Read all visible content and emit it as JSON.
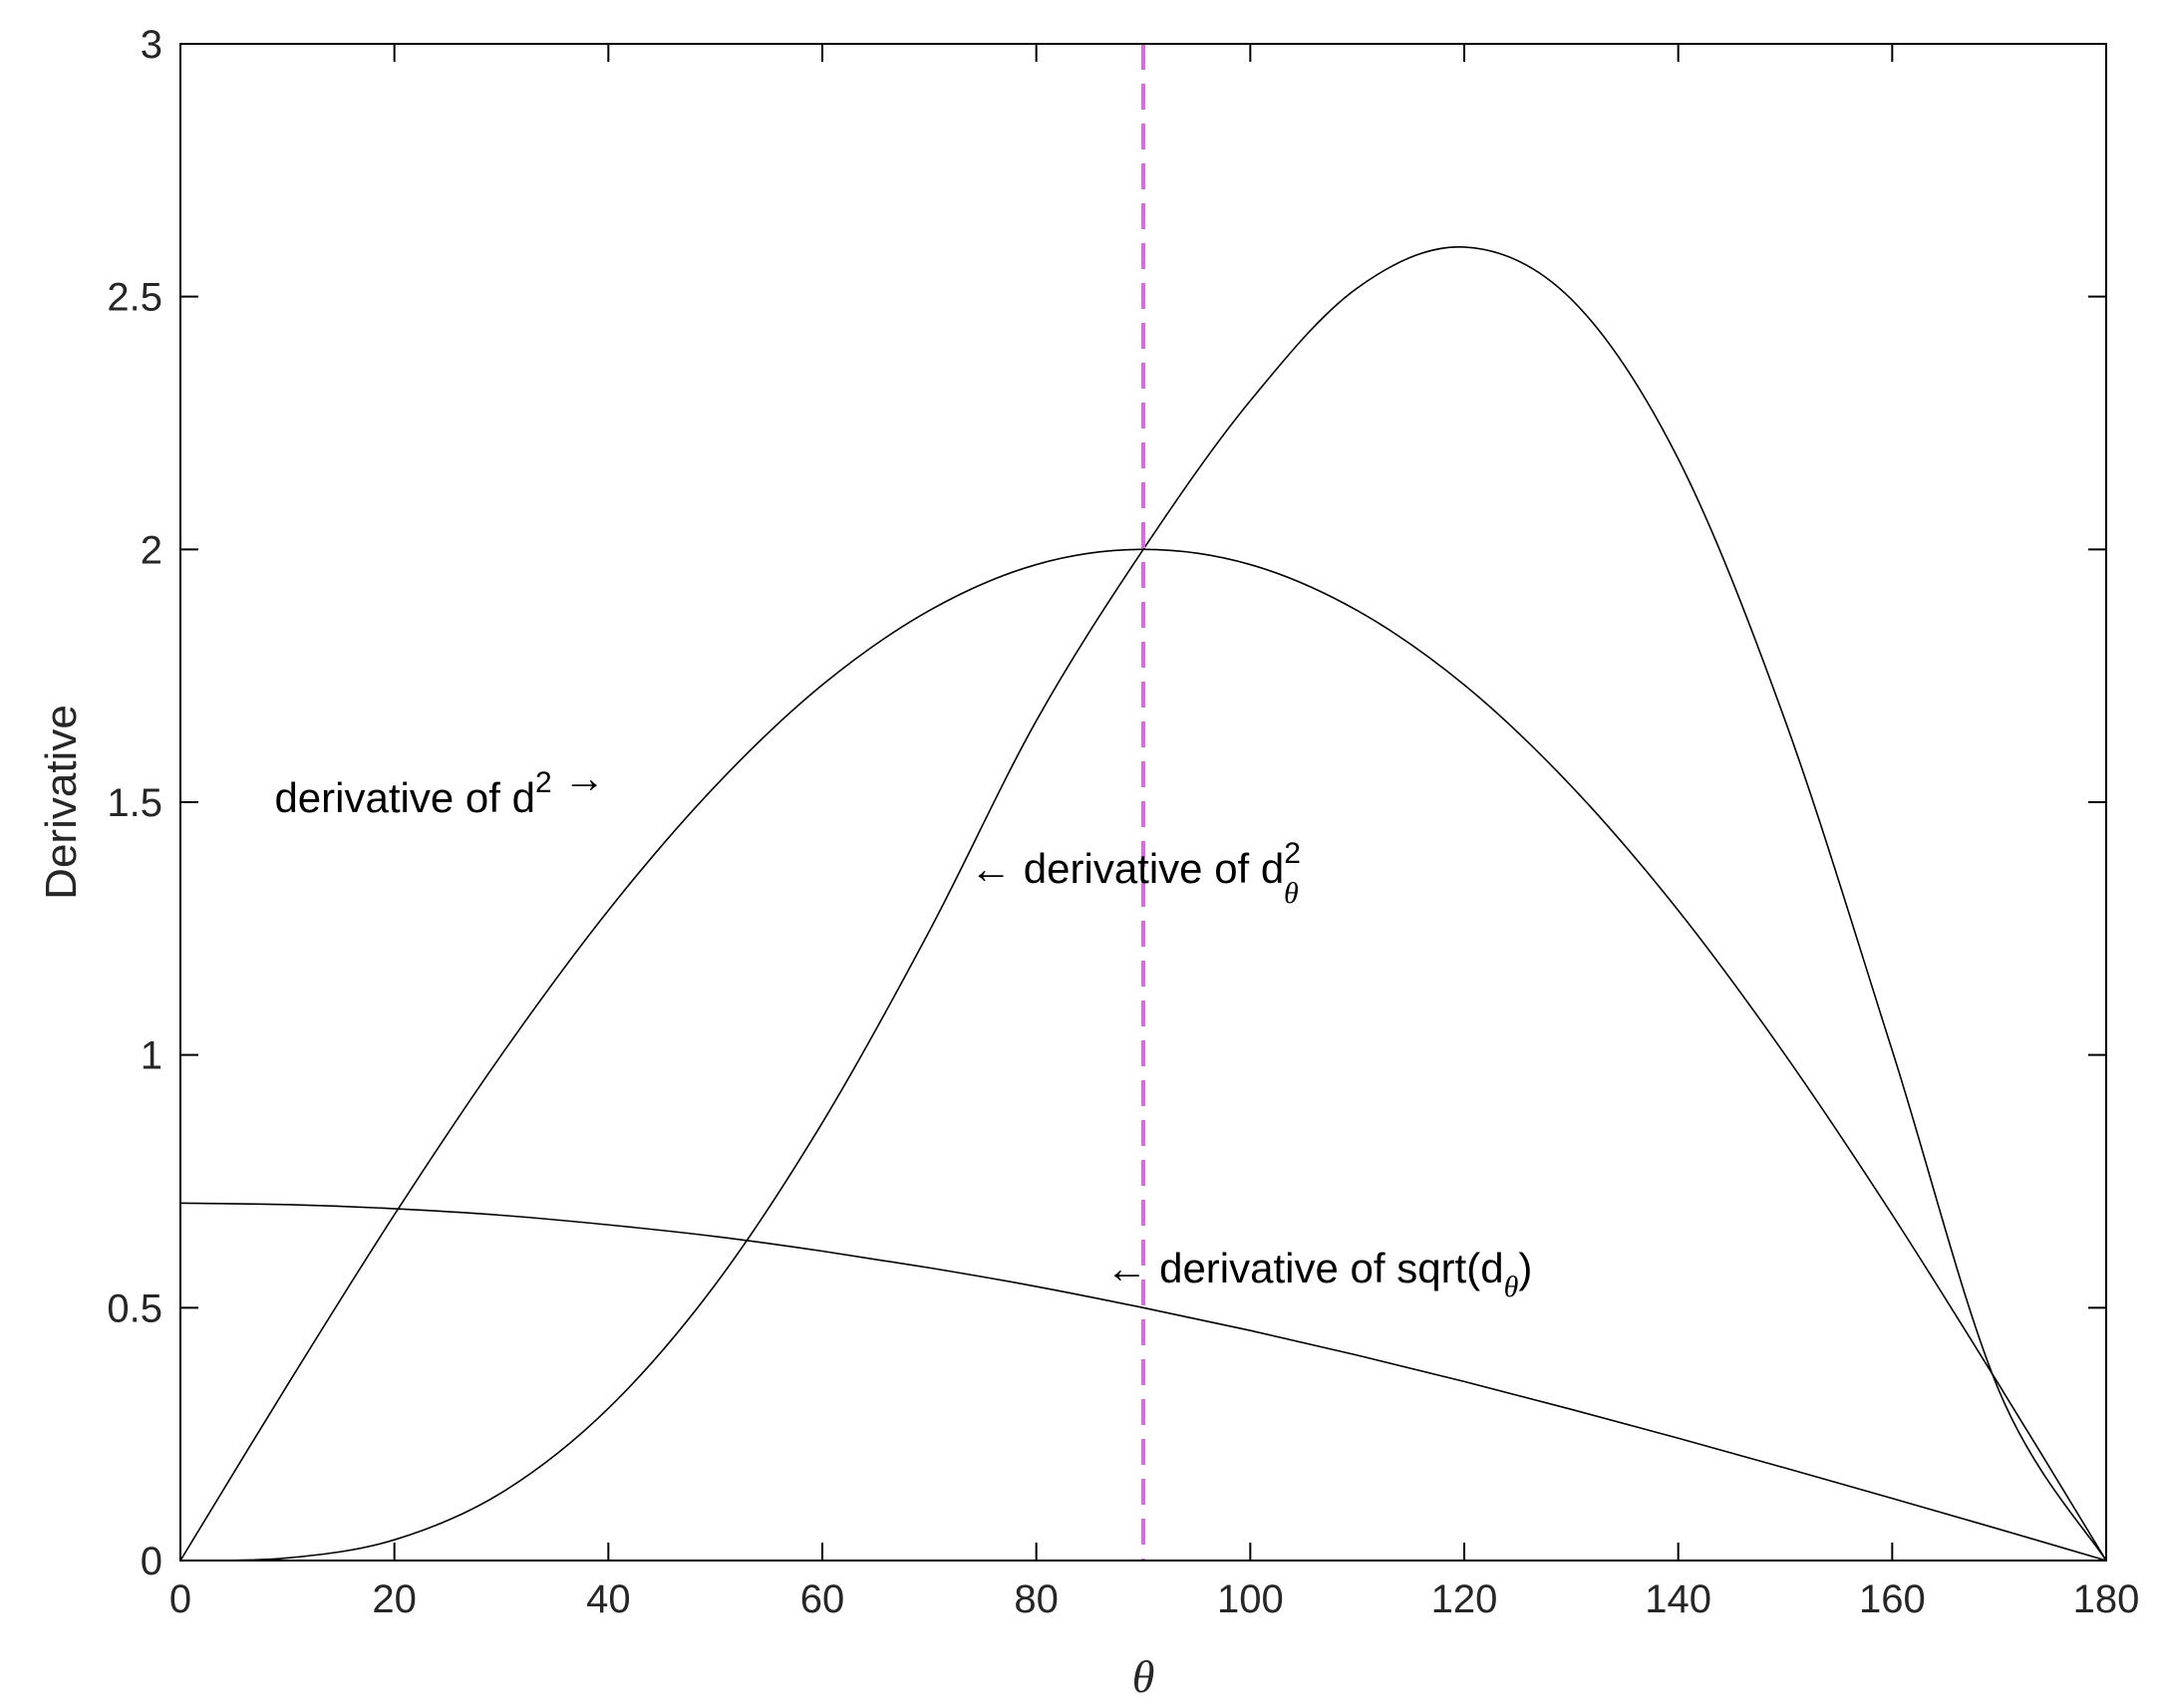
{
  "chart_data": {
    "type": "line",
    "title": "",
    "xlabel": "θ",
    "ylabel": "Derivative",
    "xlim": [
      0,
      180
    ],
    "ylim": [
      0,
      3
    ],
    "xticks": [
      0,
      20,
      40,
      60,
      80,
      100,
      120,
      140,
      160,
      180
    ],
    "yticks": [
      0,
      0.5,
      1,
      1.5,
      2,
      2.5,
      3
    ],
    "xtick_labels": [
      "0",
      "20",
      "40",
      "60",
      "80",
      "100",
      "120",
      "140",
      "160",
      "180"
    ],
    "ytick_labels": [
      "0",
      "0.5",
      "1",
      "1.5",
      "2",
      "2.5",
      "3"
    ],
    "grid": false,
    "box": true,
    "series": [
      {
        "color": "#000000",
        "x": [
          0,
          10,
          20,
          30,
          40,
          50,
          60,
          70,
          80,
          90,
          100,
          110,
          120,
          130,
          140,
          150,
          160,
          170,
          180
        ],
        "y": [
          0,
          0.347,
          0.684,
          1.0,
          1.286,
          1.532,
          1.732,
          1.879,
          1.97,
          2.0,
          1.97,
          1.879,
          1.732,
          1.532,
          1.286,
          1.0,
          0.684,
          0.347,
          0
        ]
      },
      {
        "color": "#000000",
        "x": [
          0,
          10,
          20,
          30,
          40,
          50,
          60,
          70,
          80,
          90,
          100,
          110,
          120,
          130,
          140,
          150,
          160,
          170,
          180
        ],
        "y": [
          0,
          0.005,
          0.041,
          0.134,
          0.301,
          0.546,
          0.866,
          1.245,
          1.661,
          2.0,
          2.294,
          2.517,
          2.598,
          2.495,
          2.179,
          1.661,
          1.009,
          0.335,
          0
        ]
      },
      {
        "color": "#000000",
        "x": [
          0,
          10,
          20,
          30,
          40,
          50,
          60,
          70,
          80,
          90,
          100,
          110,
          120,
          130,
          140,
          150,
          160,
          170,
          180
        ],
        "y": [
          0.707,
          0.704,
          0.696,
          0.683,
          0.664,
          0.641,
          0.612,
          0.579,
          0.542,
          0.5,
          0.455,
          0.406,
          0.354,
          0.299,
          0.242,
          0.183,
          0.123,
          0.062,
          0
        ]
      }
    ],
    "reference_lines": [
      {
        "orientation": "vertical",
        "x": 90,
        "color": "#e066e6",
        "style": "dashed"
      }
    ],
    "annotations": [
      {
        "text": "derivative of d",
        "superscript": "2",
        "arrow": "→",
        "x": 8.8,
        "y": 1.48
      },
      {
        "text": "derivative of d",
        "superscript": "2",
        "subscript": "θ",
        "arrow": "←",
        "x": 73.8,
        "y": 1.34
      },
      {
        "text": "derivative of sqrt(d",
        "subscript": "θ",
        "suffix": ")",
        "arrow": "←",
        "x": 86.5,
        "y": 0.55
      }
    ]
  }
}
